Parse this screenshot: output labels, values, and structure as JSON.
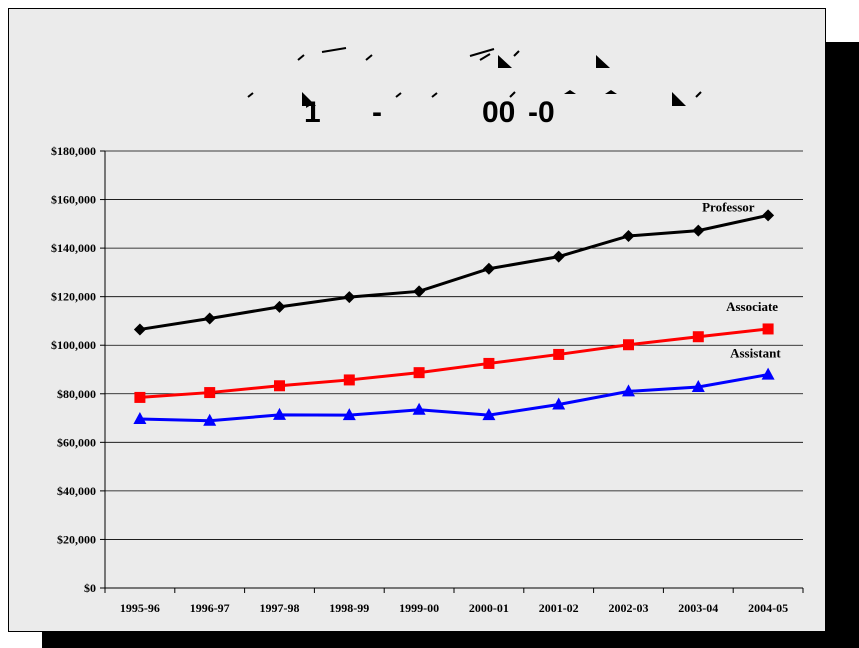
{
  "chart_data": {
    "type": "line",
    "title_fragments": [
      "1",
      "-",
      "00",
      "-0"
    ],
    "categories": [
      "1995-96",
      "1996-97",
      "1997-98",
      "1998-99",
      "1999-00",
      "2000-01",
      "2001-02",
      "2002-03",
      "2003-04",
      "2004-05"
    ],
    "y_ticks": [
      "$0",
      "$20,000",
      "$40,000",
      "$60,000",
      "$80,000",
      "$100,000",
      "$120,000",
      "$140,000",
      "$160,000",
      "$180,000"
    ],
    "ylim": [
      0,
      180000
    ],
    "grid": true,
    "series": [
      {
        "name": "Professor",
        "color": "#000000",
        "marker": "diamond",
        "values": [
          106500,
          111000,
          115800,
          119800,
          122200,
          131500,
          136500,
          145000,
          147200,
          153500
        ]
      },
      {
        "name": "Associate",
        "color": "#ff0000",
        "marker": "square",
        "values": [
          78500,
          80500,
          83300,
          85700,
          88700,
          92500,
          96200,
          100200,
          103500,
          106700
        ]
      },
      {
        "name": "Assistant",
        "color": "#0000ff",
        "marker": "triangle",
        "values": [
          69600,
          68900,
          71300,
          71200,
          73400,
          71200,
          75600,
          81000,
          82800,
          87900
        ]
      }
    ]
  }
}
